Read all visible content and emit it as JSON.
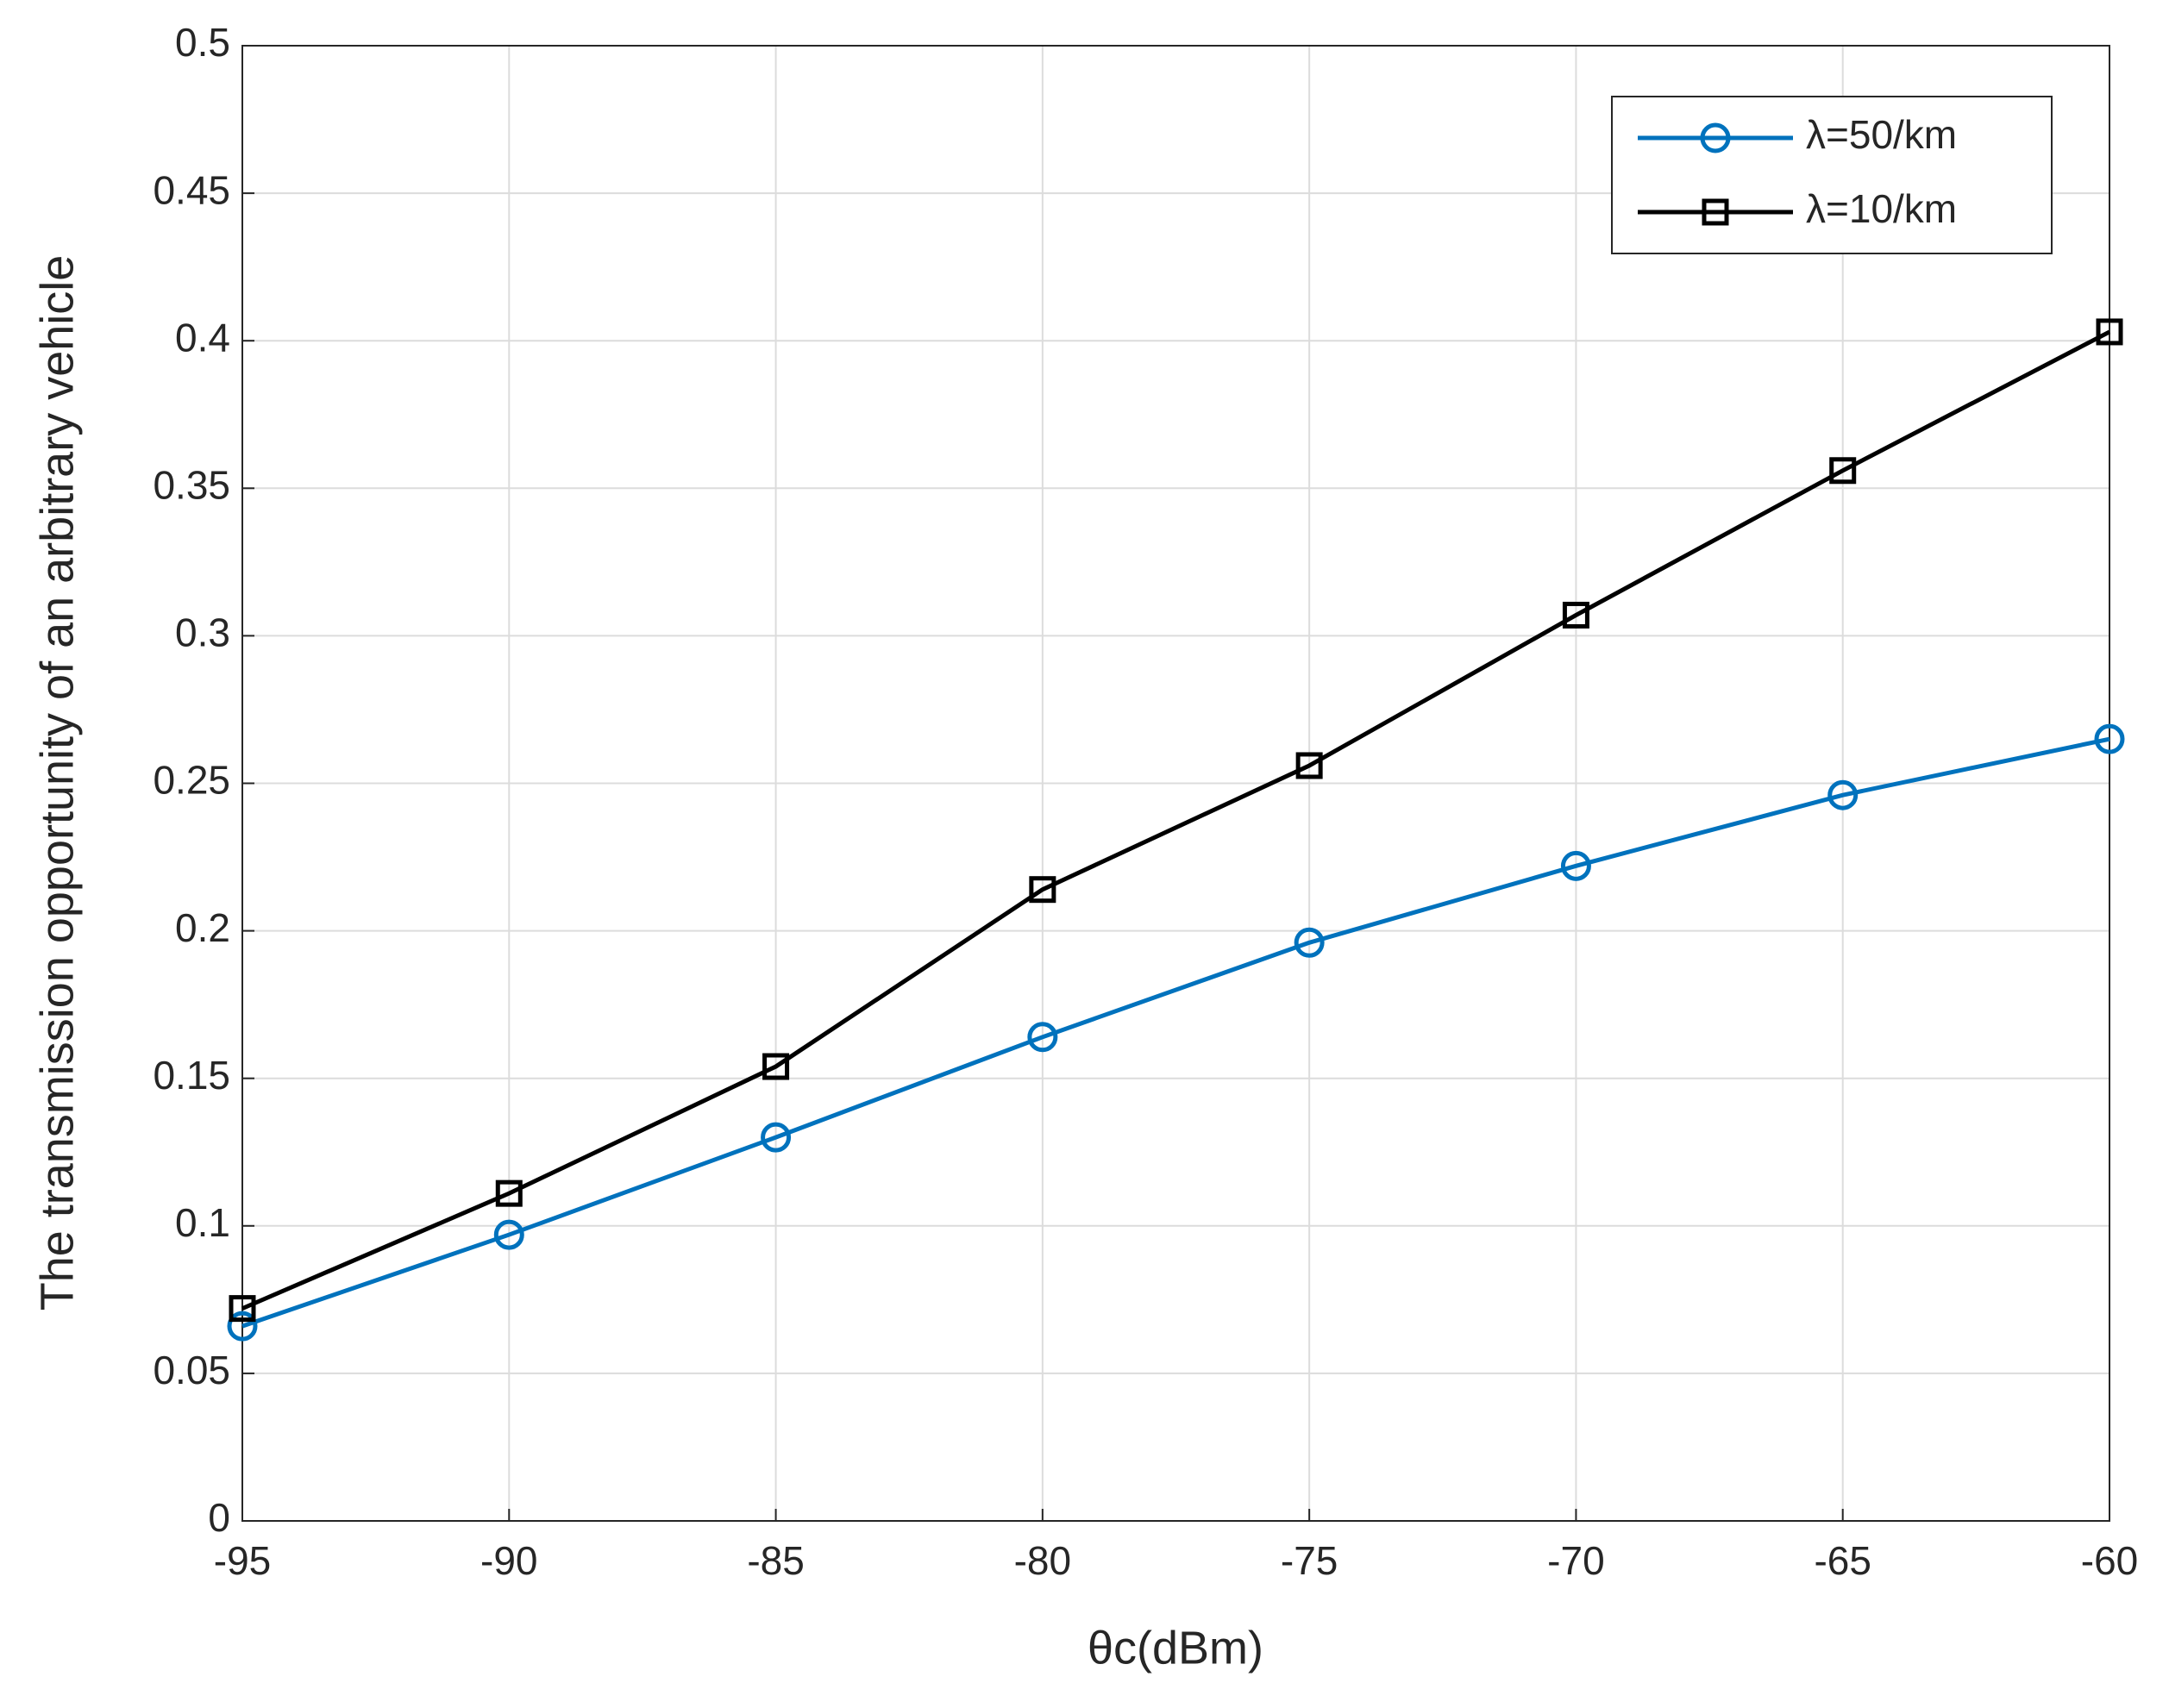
{
  "chart_data": {
    "type": "line",
    "x_label": "θc(dBm)",
    "y_label": "The transmission opportunity of an arbitrary vehicle",
    "x": [
      -95,
      -90,
      -85,
      -80,
      -75,
      -70,
      -65,
      -60
    ],
    "series": [
      {
        "name": "λ=50/km",
        "color": "#0072bd",
        "marker": "circle",
        "values": [
          0.066,
          0.097,
          0.13,
          0.164,
          0.196,
          0.222,
          0.246,
          0.265
        ]
      },
      {
        "name": "λ=10/km",
        "color": "#000000",
        "marker": "square",
        "values": [
          0.072,
          0.111,
          0.154,
          0.214,
          0.256,
          0.307,
          0.356,
          0.403
        ]
      }
    ],
    "xlim": [
      -95,
      -60
    ],
    "xticks": [
      -95,
      -90,
      -85,
      -80,
      -75,
      -70,
      -65,
      -60
    ],
    "ylim": [
      0,
      0.5
    ],
    "yticks": [
      0,
      0.05,
      0.1,
      0.15,
      0.2,
      0.25,
      0.3,
      0.35,
      0.4,
      0.45,
      0.5
    ],
    "grid": true,
    "legend": "upper right"
  }
}
